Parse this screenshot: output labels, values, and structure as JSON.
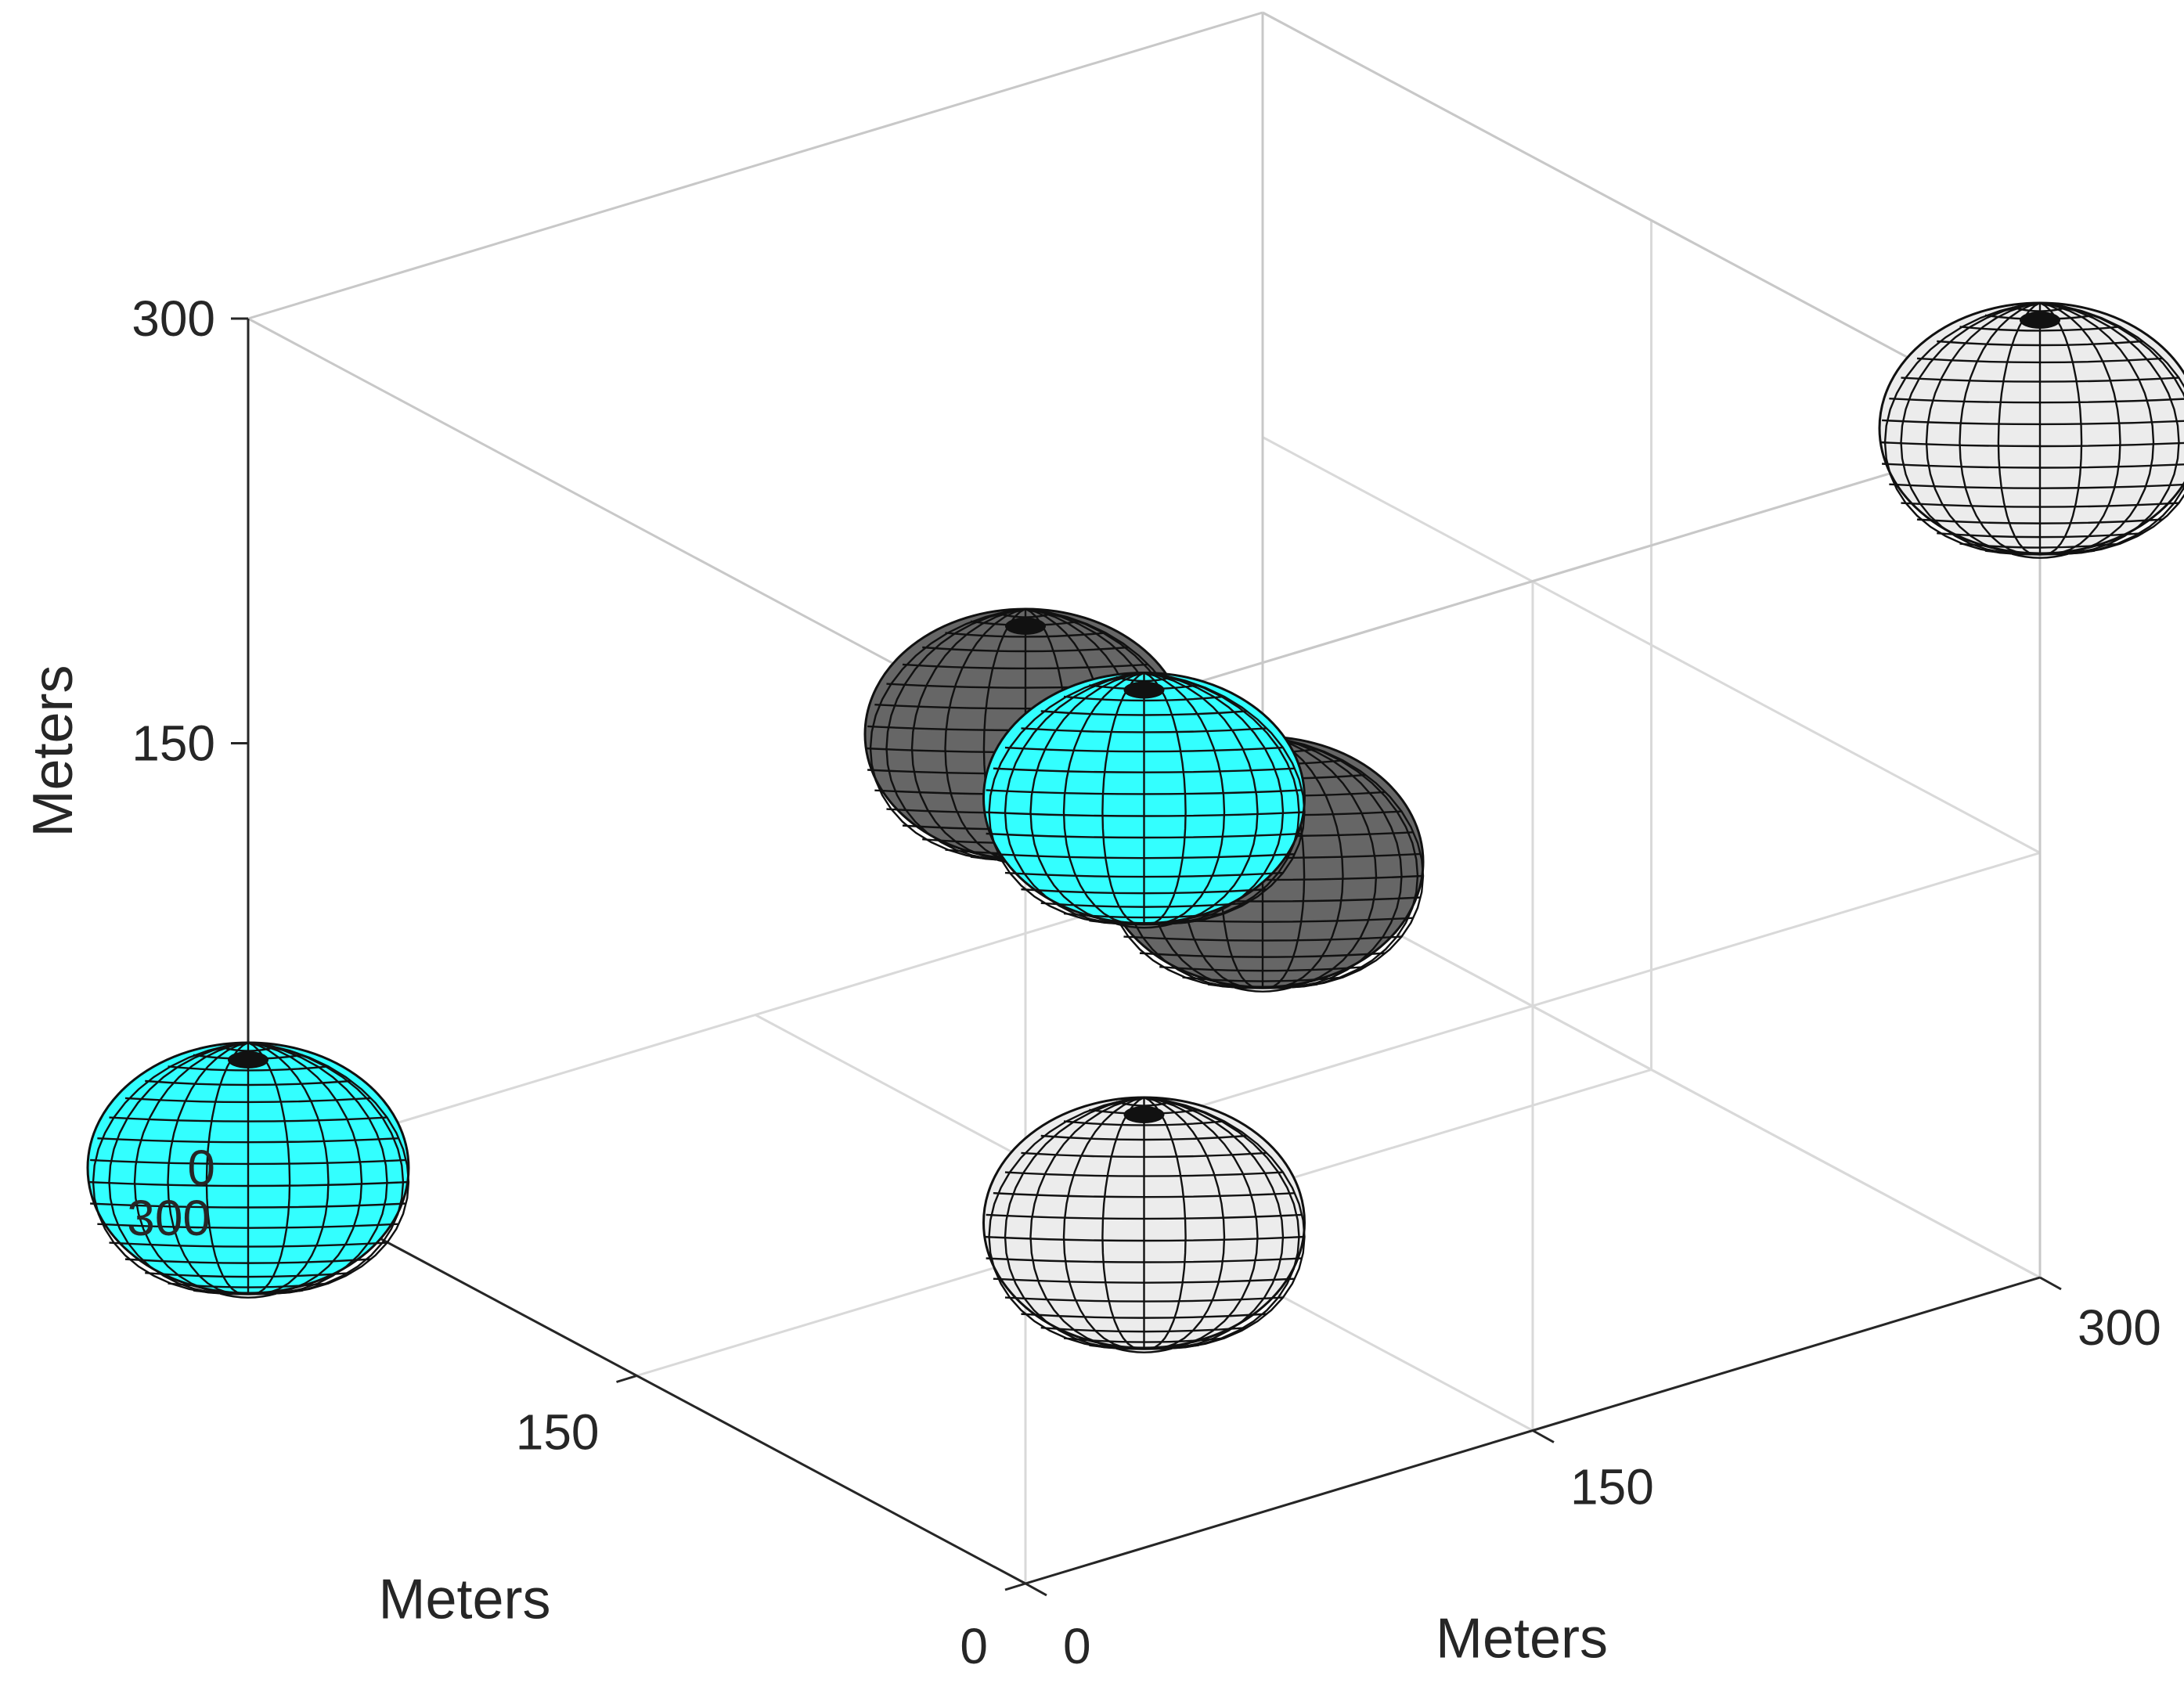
{
  "chart_data": {
    "type": "scatter3d",
    "title": "",
    "xlabel": "Meters",
    "ylabel": "Meters",
    "zlabel": "Meters",
    "xlim": [
      0,
      300
    ],
    "ylim": [
      0,
      300
    ],
    "zlim": [
      0,
      300
    ],
    "xticks": [
      "0",
      "150",
      "300"
    ],
    "yticks": [
      "0",
      "150",
      "300"
    ],
    "zticks": [
      "0",
      "150",
      "300"
    ],
    "grid": true,
    "box": true,
    "marker": "sphere",
    "spheres": [
      {
        "x": 0,
        "y": 0,
        "z": 300,
        "color": "#666666"
      },
      {
        "x": 300,
        "y": 300,
        "z": 0,
        "color": "#666666"
      },
      {
        "x": 0,
        "y": 300,
        "z": 0,
        "color": "#33ffff"
      },
      {
        "x": 150,
        "y": 150,
        "z": 150,
        "color": "#33ffff"
      },
      {
        "x": 300,
        "y": 0,
        "z": 300,
        "color": "#ececec"
      },
      {
        "x": 150,
        "y": 150,
        "z": 0,
        "color": "#ececec"
      }
    ]
  }
}
